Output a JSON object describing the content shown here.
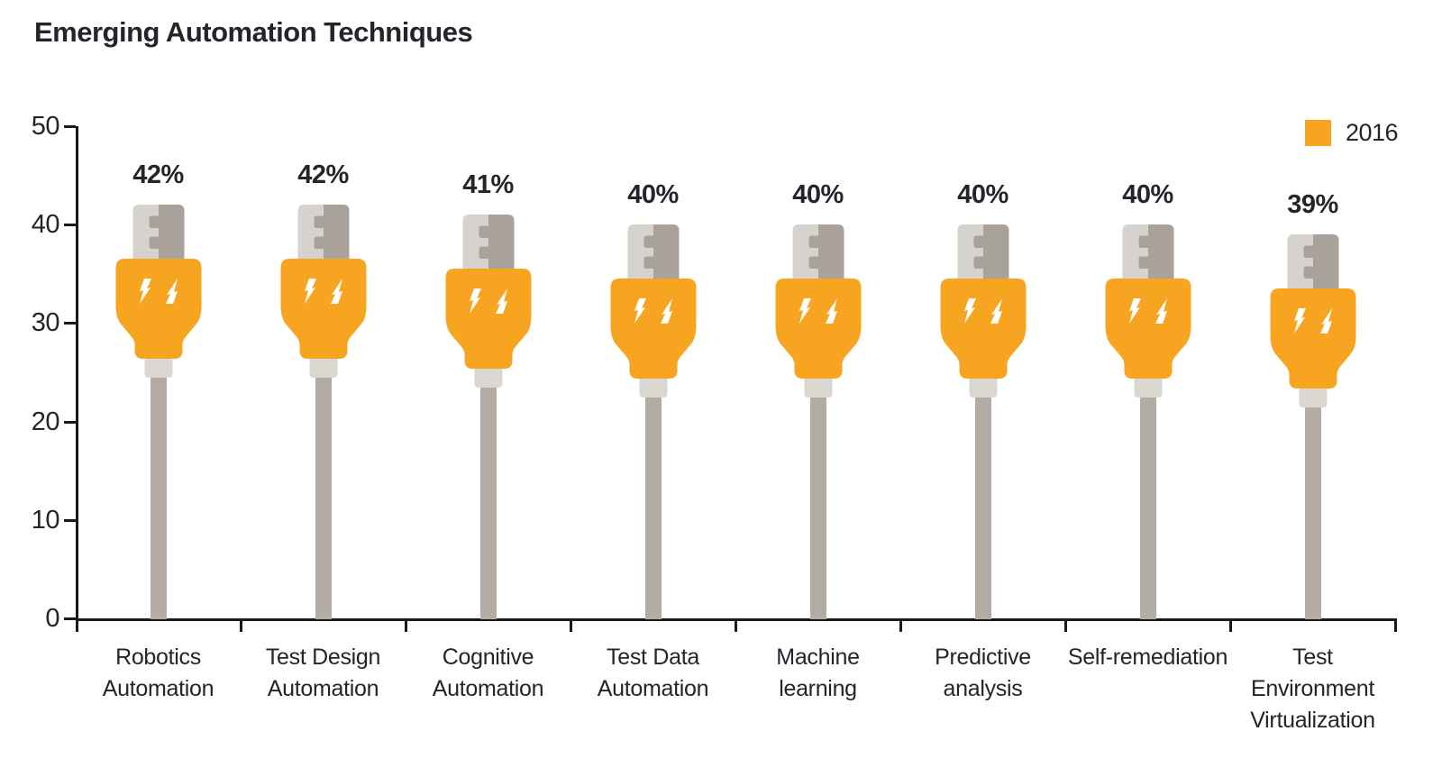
{
  "chart_data": {
    "type": "bar",
    "title": "Emerging Automation Techniques",
    "legend": {
      "label": "2016",
      "position": "top-right"
    },
    "categories": [
      "Robotics\nAutomation",
      "Test Design\nAutomation",
      "Cognitive\nAutomation",
      "Test Data\nAutomation",
      "Machine\nlearning",
      "Predictive\nanalysis",
      "Self-remediation",
      "Test\nEnvironment\nVirtualization"
    ],
    "values": [
      42,
      42,
      41,
      40,
      40,
      40,
      40,
      39
    ],
    "value_labels": [
      "42%",
      "42%",
      "41%",
      "40%",
      "40%",
      "40%",
      "40%",
      "39%"
    ],
    "xlabel": "",
    "ylabel": "",
    "ylim": [
      0,
      50
    ],
    "yticks": [
      0,
      10,
      20,
      30,
      40,
      50
    ],
    "grid": false,
    "bar_style": "usb-plug-pictogram",
    "colors": {
      "bar_orange": "#F7A521",
      "connector_light": "#D6D2CD",
      "connector_dark": "#A8A29B",
      "strain_relief": "#DBD7D1",
      "cable": "#B3ACA4",
      "axis": "#1A1A1A",
      "text": "#26232B",
      "bolt": "#FFFFFF"
    }
  }
}
